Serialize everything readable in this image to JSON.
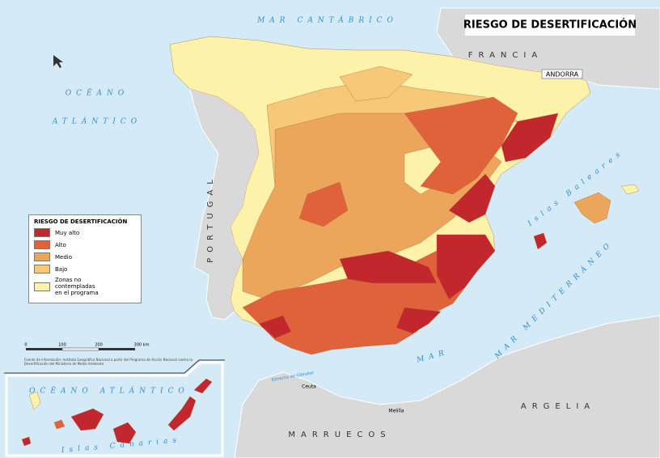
{
  "title": "RIESGO DE DESERTIFICACIÓN",
  "places": {
    "mar_cantabrico": "MAR CANTÁBRICO",
    "francia": "FRANCIA",
    "andorra": "ANDORRA",
    "oceano_1": "OCÉANO",
    "oceano_2": "ATLÁNTICO",
    "portugal": "PORTUGAL",
    "baleares": "Islas Baleares",
    "mediterraneo": "MAR MEDITERRÁNEO",
    "mar": "MAR",
    "argelia": "ARGELIA",
    "marruecos": "MARRUECOS",
    "ceuta": "Ceuta",
    "melilla": "Melilla",
    "estrecho": "Estrecho de Gibraltar"
  },
  "legend": {
    "title": "RIESGO DE DESERTIFICACIÓN",
    "items": [
      {
        "label": "Muy alto",
        "color": "#c2272d"
      },
      {
        "label": "Alto",
        "color": "#e0623b"
      },
      {
        "label": "Medio",
        "color": "#eca65c"
      },
      {
        "label": "Bajo",
        "color": "#f6c878"
      },
      {
        "label": "Zonas no contempladas en el programa",
        "color": "#fdf2a9"
      }
    ]
  },
  "scale": [
    "0",
    "100",
    "200",
    "300 km"
  ],
  "source": "Fuente de información: Instituto Geográfico Nacional a partir del Programa de Acción Nacional contra la Desertificación del Ministerio de Medio Ambiente",
  "inset": {
    "ocean": "OCÉANO ATLÁNTICO",
    "islands": "Islas Canarias"
  }
}
